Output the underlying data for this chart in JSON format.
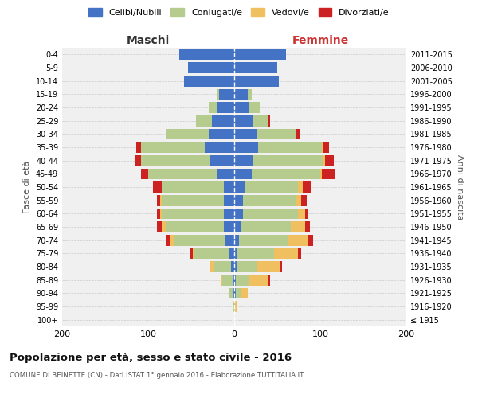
{
  "age_groups": [
    "100+",
    "95-99",
    "90-94",
    "85-89",
    "80-84",
    "75-79",
    "70-74",
    "65-69",
    "60-64",
    "55-59",
    "50-54",
    "45-49",
    "40-44",
    "35-39",
    "30-34",
    "25-29",
    "20-24",
    "15-19",
    "10-14",
    "5-9",
    "0-4"
  ],
  "birth_years": [
    "≤ 1915",
    "1916-1920",
    "1921-1925",
    "1926-1930",
    "1931-1935",
    "1936-1940",
    "1941-1945",
    "1946-1950",
    "1951-1955",
    "1956-1960",
    "1961-1965",
    "1966-1970",
    "1971-1975",
    "1976-1980",
    "1981-1985",
    "1986-1990",
    "1991-1995",
    "1996-2000",
    "2001-2005",
    "2006-2010",
    "2011-2015"
  ],
  "male": {
    "celibi": [
      0,
      0,
      2,
      2,
      4,
      6,
      10,
      12,
      12,
      12,
      12,
      20,
      28,
      34,
      30,
      26,
      20,
      18,
      58,
      54,
      64
    ],
    "coniugati": [
      0,
      1,
      4,
      12,
      20,
      40,
      60,
      68,
      72,
      72,
      72,
      80,
      80,
      74,
      50,
      18,
      10,
      2,
      0,
      0,
      0
    ],
    "vedovi": [
      0,
      0,
      0,
      2,
      4,
      2,
      4,
      4,
      2,
      2,
      0,
      0,
      0,
      0,
      0,
      0,
      0,
      0,
      0,
      0,
      0
    ],
    "divorziati": [
      0,
      0,
      0,
      0,
      0,
      4,
      6,
      6,
      4,
      4,
      10,
      8,
      8,
      6,
      0,
      0,
      0,
      0,
      0,
      0,
      0
    ]
  },
  "female": {
    "nubili": [
      0,
      0,
      2,
      2,
      4,
      4,
      6,
      8,
      10,
      10,
      12,
      20,
      22,
      28,
      26,
      22,
      18,
      16,
      52,
      50,
      60
    ],
    "coniugate": [
      0,
      1,
      6,
      16,
      22,
      42,
      56,
      58,
      64,
      62,
      62,
      80,
      82,
      74,
      46,
      18,
      12,
      4,
      0,
      0,
      0
    ],
    "vedove": [
      0,
      2,
      8,
      22,
      28,
      28,
      24,
      16,
      8,
      6,
      6,
      2,
      2,
      2,
      0,
      0,
      0,
      0,
      0,
      0,
      0
    ],
    "divorziate": [
      0,
      0,
      0,
      2,
      2,
      4,
      6,
      6,
      4,
      6,
      10,
      16,
      10,
      6,
      4,
      2,
      0,
      0,
      0,
      0,
      0
    ]
  },
  "colors": {
    "celibi_nubili": "#4472c4",
    "coniugati": "#b5cc8e",
    "vedovi": "#f0c060",
    "divorziati": "#cc2222"
  },
  "title": "Popolazione per età, sesso e stato civile - 2016",
  "subtitle": "COMUNE DI BEINETTE (CN) - Dati ISTAT 1° gennaio 2016 - Elaborazione TUTTITALIA.IT",
  "xlabel_left": "Maschi",
  "xlabel_right": "Femmine",
  "ylabel_left": "Fasce di età",
  "ylabel_right": "Anni di nascita",
  "xlim": 200,
  "background_color": "#ffffff",
  "legend_labels": [
    "Celibi/Nubili",
    "Coniugati/e",
    "Vedovi/e",
    "Divorziati/e"
  ],
  "ax_bg": "#f0f0f0"
}
